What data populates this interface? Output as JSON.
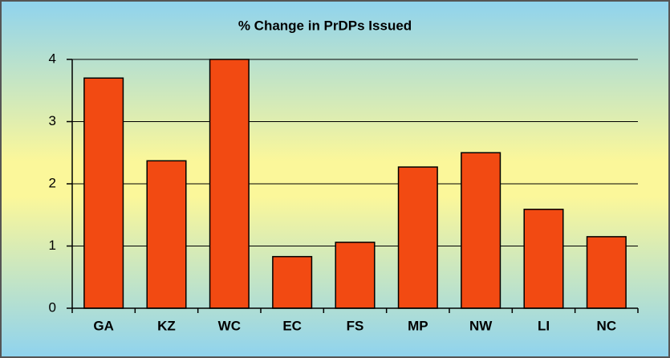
{
  "chart_data": {
    "type": "bar",
    "title": "% Change in PrDPs Issued",
    "categories": [
      "GA",
      "KZ",
      "WC",
      "EC",
      "FS",
      "MP",
      "NW",
      "LI",
      "NC"
    ],
    "values": [
      3.7,
      2.37,
      4.0,
      0.83,
      1.06,
      2.27,
      2.5,
      1.59,
      1.15
    ],
    "color": "#f24a12",
    "ylim": [
      0,
      4
    ],
    "yticks": [
      0,
      1,
      2,
      3,
      4
    ],
    "grid": true
  }
}
